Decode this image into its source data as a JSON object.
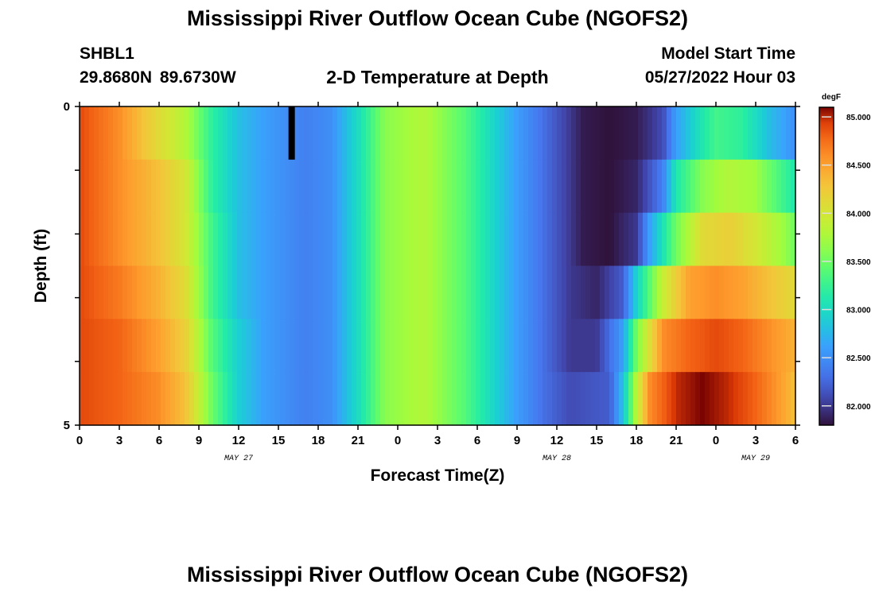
{
  "header": {
    "title": "Mississippi River Outflow Ocean Cube (NGOFS2)",
    "station": "SHBL1",
    "coords": "29.8680N  89.6730W",
    "plot_title": "2-D Temperature at Depth",
    "model_start_label": "Model Start Time",
    "model_start_value": "05/27/2022 Hour 03"
  },
  "footer": {
    "title": "Mississippi River Outflow Ocean Cube (NGOFS2)"
  },
  "chart_data": {
    "type": "heatmap",
    "title": "2-D Temperature at Depth",
    "xlabel": "Forecast Time(Z)",
    "ylabel": "Depth (ft)",
    "x_start": "05/27/2022 Hour 00",
    "x_hours_range": [
      0,
      54
    ],
    "x_tick_labels": [
      "0",
      "3",
      "6",
      "9",
      "12",
      "15",
      "18",
      "21",
      "0",
      "3",
      "6",
      "9",
      "12",
      "15",
      "18",
      "21",
      "0",
      "3",
      "6"
    ],
    "date_labels": [
      {
        "label": "MAY 27",
        "hour": 12
      },
      {
        "label": "MAY 28",
        "hour": 36
      },
      {
        "label": "MAY 29",
        "hour": 51
      }
    ],
    "y_range": [
      0,
      5
    ],
    "y_tick_labels": [
      "0",
      "5"
    ],
    "depth_layers": [
      0,
      1,
      2,
      3,
      4,
      5
    ],
    "colorbar": {
      "unit": "degF",
      "range": [
        81.8,
        85.1
      ],
      "tick_values": [
        82.0,
        82.5,
        83.0,
        83.5,
        84.0,
        84.5,
        85.0
      ],
      "tick_labels": [
        "82.000",
        "82.500",
        "83.000",
        "83.500",
        "84.000",
        "84.500",
        "85.000"
      ]
    },
    "missing_data_hour": 16,
    "profiles": [
      {
        "depth": 0,
        "points": [
          [
            0,
            84.9
          ],
          [
            3,
            84.6
          ],
          [
            6,
            84.1
          ],
          [
            8,
            83.8
          ],
          [
            10,
            83.2
          ],
          [
            12,
            82.8
          ],
          [
            14,
            82.6
          ],
          [
            17,
            82.4
          ],
          [
            19,
            82.5
          ],
          [
            21,
            83.0
          ],
          [
            23,
            83.6
          ],
          [
            26,
            83.8
          ],
          [
            29,
            83.4
          ],
          [
            31,
            83.0
          ],
          [
            33,
            82.6
          ],
          [
            35,
            82.3
          ],
          [
            37,
            82.0
          ],
          [
            38,
            81.85
          ],
          [
            40,
            81.8
          ],
          [
            42,
            81.85
          ],
          [
            44,
            82.1
          ],
          [
            45,
            82.6
          ],
          [
            47,
            83.1
          ],
          [
            48,
            83.3
          ],
          [
            50,
            83.2
          ],
          [
            52,
            82.8
          ],
          [
            54,
            82.5
          ]
        ]
      },
      {
        "depth": 1,
        "points": [
          [
            0,
            84.9
          ],
          [
            3,
            84.6
          ],
          [
            6,
            84.3
          ],
          [
            8,
            84.0
          ],
          [
            10,
            83.2
          ],
          [
            12,
            82.8
          ],
          [
            14,
            82.6
          ],
          [
            17,
            82.4
          ],
          [
            19,
            82.5
          ],
          [
            21,
            83.0
          ],
          [
            23,
            83.6
          ],
          [
            26,
            83.8
          ],
          [
            29,
            83.4
          ],
          [
            31,
            83.0
          ],
          [
            33,
            82.6
          ],
          [
            35,
            82.3
          ],
          [
            37,
            82.0
          ],
          [
            38,
            81.85
          ],
          [
            40,
            81.8
          ],
          [
            42,
            81.9
          ],
          [
            44,
            82.4
          ],
          [
            45,
            83.1
          ],
          [
            47,
            83.6
          ],
          [
            49,
            83.8
          ],
          [
            51,
            83.7
          ],
          [
            53,
            83.3
          ],
          [
            54,
            83.1
          ]
        ]
      },
      {
        "depth": 2,
        "points": [
          [
            0,
            84.9
          ],
          [
            3,
            84.6
          ],
          [
            6,
            84.3
          ],
          [
            8,
            84.0
          ],
          [
            10,
            83.3
          ],
          [
            12,
            82.8
          ],
          [
            14,
            82.6
          ],
          [
            17,
            82.4
          ],
          [
            19,
            82.5
          ],
          [
            21,
            83.0
          ],
          [
            23,
            83.6
          ],
          [
            26,
            83.8
          ],
          [
            29,
            83.4
          ],
          [
            31,
            83.0
          ],
          [
            33,
            82.6
          ],
          [
            35,
            82.3
          ],
          [
            37,
            82.0
          ],
          [
            38,
            81.85
          ],
          [
            40,
            81.8
          ],
          [
            42,
            82.0
          ],
          [
            43,
            82.6
          ],
          [
            45,
            83.5
          ],
          [
            47,
            84.1
          ],
          [
            49,
            84.2
          ],
          [
            51,
            84.0
          ],
          [
            53,
            83.7
          ],
          [
            54,
            83.5
          ]
        ]
      },
      {
        "depth": 3,
        "points": [
          [
            0,
            84.9
          ],
          [
            3,
            84.7
          ],
          [
            6,
            84.4
          ],
          [
            8,
            84.1
          ],
          [
            10,
            83.3
          ],
          [
            12,
            82.8
          ],
          [
            14,
            82.6
          ],
          [
            17,
            82.4
          ],
          [
            19,
            82.5
          ],
          [
            21,
            83.0
          ],
          [
            23,
            83.6
          ],
          [
            26,
            83.8
          ],
          [
            29,
            83.4
          ],
          [
            31,
            83.0
          ],
          [
            33,
            82.6
          ],
          [
            35,
            82.3
          ],
          [
            37,
            82.0
          ],
          [
            39,
            81.9
          ],
          [
            41,
            82.2
          ],
          [
            42,
            82.9
          ],
          [
            44,
            83.9
          ],
          [
            46,
            84.5
          ],
          [
            48,
            84.6
          ],
          [
            50,
            84.5
          ],
          [
            52,
            84.3
          ],
          [
            54,
            84.1
          ]
        ]
      },
      {
        "depth": 4,
        "points": [
          [
            0,
            84.9
          ],
          [
            3,
            84.8
          ],
          [
            6,
            84.5
          ],
          [
            8,
            84.2
          ],
          [
            10,
            83.4
          ],
          [
            12,
            82.9
          ],
          [
            14,
            82.6
          ],
          [
            17,
            82.4
          ],
          [
            19,
            82.5
          ],
          [
            21,
            83.0
          ],
          [
            23,
            83.6
          ],
          [
            26,
            83.8
          ],
          [
            29,
            83.4
          ],
          [
            31,
            83.0
          ],
          [
            33,
            82.6
          ],
          [
            35,
            82.3
          ],
          [
            37,
            82.0
          ],
          [
            39,
            82.0
          ],
          [
            41,
            82.6
          ],
          [
            42,
            83.5
          ],
          [
            44,
            84.6
          ],
          [
            46,
            84.8
          ],
          [
            48,
            84.9
          ],
          [
            50,
            84.8
          ],
          [
            52,
            84.6
          ],
          [
            54,
            84.4
          ]
        ]
      },
      {
        "depth": 5,
        "points": [
          [
            0,
            84.9
          ],
          [
            3,
            84.8
          ],
          [
            6,
            84.6
          ],
          [
            8,
            84.3
          ],
          [
            10,
            83.5
          ],
          [
            12,
            82.9
          ],
          [
            14,
            82.6
          ],
          [
            17,
            82.4
          ],
          [
            19,
            82.5
          ],
          [
            21,
            83.0
          ],
          [
            23,
            83.6
          ],
          [
            26,
            83.8
          ],
          [
            29,
            83.4
          ],
          [
            31,
            83.0
          ],
          [
            33,
            82.6
          ],
          [
            35,
            82.3
          ],
          [
            37,
            82.1
          ],
          [
            40,
            82.2
          ],
          [
            41,
            82.8
          ],
          [
            42,
            83.8
          ],
          [
            43,
            84.6
          ],
          [
            45,
            85.0
          ],
          [
            47,
            85.1
          ],
          [
            49,
            85.0
          ],
          [
            51,
            84.8
          ],
          [
            53,
            84.5
          ],
          [
            54,
            84.3
          ]
        ]
      }
    ]
  }
}
